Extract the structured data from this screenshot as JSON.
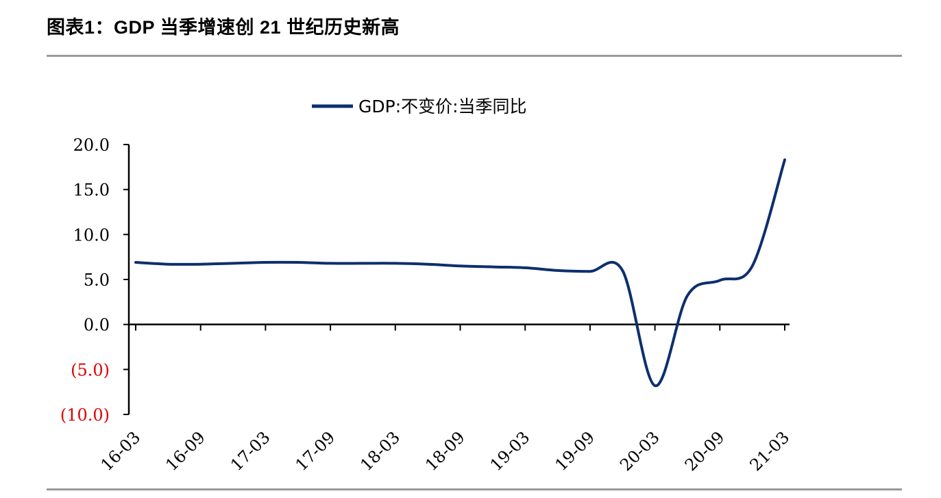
{
  "page": {
    "title": "图表1：GDP 当季增速创 21 世纪历史新高"
  },
  "colors": {
    "line": "#0d2f6e",
    "axis": "#000000",
    "negative_tick": "#e00000",
    "rule": "#9a9a9a"
  },
  "chart_data": {
    "type": "line",
    "title": "",
    "xlabel": "",
    "ylabel": "",
    "legend": {
      "position": "top-center"
    },
    "grid": false,
    "ylim": [
      -10,
      20
    ],
    "y_ticks": [
      20,
      15,
      10,
      5,
      0,
      -5,
      -10
    ],
    "y_tick_labels": [
      "20.0",
      "15.0",
      "10.0",
      "5.0",
      "0.0",
      "(5.0)",
      "(10.0)"
    ],
    "x_tick_labels": [
      "16-03",
      "16-09",
      "17-03",
      "17-09",
      "18-03",
      "18-09",
      "19-03",
      "19-09",
      "20-03",
      "20-09",
      "21-03"
    ],
    "categories": [
      "16-03",
      "16-06",
      "16-09",
      "16-12",
      "17-03",
      "17-06",
      "17-09",
      "17-12",
      "18-03",
      "18-06",
      "18-09",
      "18-12",
      "19-03",
      "19-06",
      "19-09",
      "19-12",
      "20-03",
      "20-06",
      "20-09",
      "20-12",
      "21-03"
    ],
    "series": [
      {
        "name": "GDP:不变价:当季同比",
        "values": [
          6.9,
          6.7,
          6.7,
          6.8,
          6.9,
          6.9,
          6.8,
          6.8,
          6.8,
          6.7,
          6.5,
          6.4,
          6.3,
          6.0,
          5.9,
          6.0,
          -6.8,
          3.2,
          4.9,
          6.5,
          18.3
        ]
      }
    ]
  }
}
